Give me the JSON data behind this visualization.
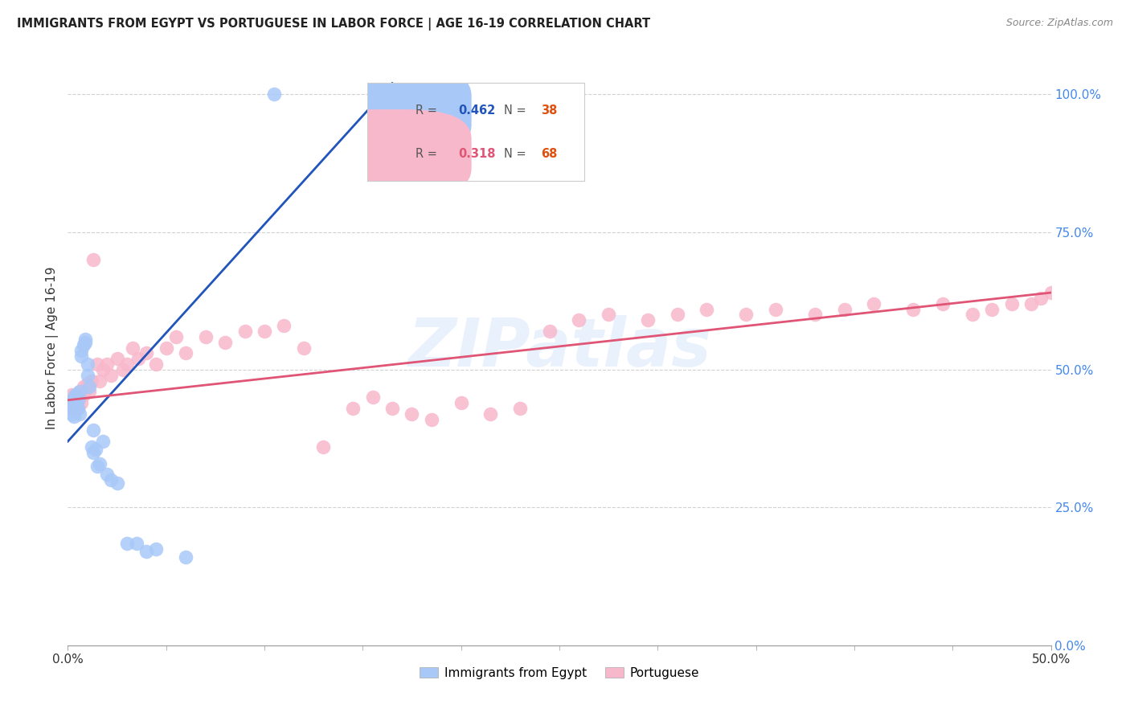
{
  "title": "IMMIGRANTS FROM EGYPT VS PORTUGUESE IN LABOR FORCE | AGE 16-19 CORRELATION CHART",
  "source": "Source: ZipAtlas.com",
  "ylabel": "In Labor Force | Age 16-19",
  "xlim": [
    0.0,
    0.5
  ],
  "ylim": [
    0.0,
    1.08
  ],
  "x_tick_positions": [
    0.0,
    0.5
  ],
  "x_tick_labels": [
    "0.0%",
    "50.0%"
  ],
  "y_ticks_right": [
    0.0,
    0.25,
    0.5,
    0.75,
    1.0
  ],
  "y_tick_labels_right": [
    "0.0%",
    "25.0%",
    "50.0%",
    "75.0%",
    "100.0%"
  ],
  "egypt_R": 0.462,
  "egypt_N": 38,
  "portuguese_R": 0.318,
  "portuguese_N": 68,
  "egypt_color": "#a8c8f8",
  "portuguese_color": "#f8b8cc",
  "egypt_line_color": "#2255bb",
  "portuguese_line_color": "#e05575",
  "egypt_scatter_x": [
    0.001,
    0.002,
    0.002,
    0.003,
    0.003,
    0.003,
    0.004,
    0.004,
    0.004,
    0.005,
    0.005,
    0.005,
    0.006,
    0.006,
    0.007,
    0.007,
    0.008,
    0.009,
    0.009,
    0.01,
    0.01,
    0.011,
    0.012,
    0.013,
    0.013,
    0.014,
    0.015,
    0.016,
    0.018,
    0.02,
    0.022,
    0.025,
    0.03,
    0.035,
    0.04,
    0.045,
    0.06,
    0.105
  ],
  "egypt_scatter_y": [
    0.44,
    0.42,
    0.445,
    0.415,
    0.45,
    0.43,
    0.44,
    0.455,
    0.435,
    0.45,
    0.43,
    0.445,
    0.42,
    0.46,
    0.525,
    0.535,
    0.545,
    0.55,
    0.555,
    0.49,
    0.51,
    0.47,
    0.36,
    0.39,
    0.35,
    0.355,
    0.325,
    0.33,
    0.37,
    0.31,
    0.3,
    0.295,
    0.185,
    0.185,
    0.17,
    0.175,
    0.16,
    1.0
  ],
  "portuguese_scatter_x": [
    0.001,
    0.002,
    0.002,
    0.003,
    0.003,
    0.004,
    0.004,
    0.005,
    0.005,
    0.006,
    0.006,
    0.007,
    0.008,
    0.008,
    0.009,
    0.01,
    0.011,
    0.012,
    0.013,
    0.015,
    0.016,
    0.018,
    0.02,
    0.022,
    0.025,
    0.028,
    0.03,
    0.033,
    0.036,
    0.04,
    0.045,
    0.05,
    0.055,
    0.06,
    0.07,
    0.08,
    0.09,
    0.1,
    0.11,
    0.12,
    0.13,
    0.145,
    0.155,
    0.165,
    0.175,
    0.185,
    0.2,
    0.215,
    0.23,
    0.245,
    0.26,
    0.275,
    0.295,
    0.31,
    0.325,
    0.345,
    0.36,
    0.38,
    0.395,
    0.41,
    0.43,
    0.445,
    0.46,
    0.47,
    0.48,
    0.49,
    0.495,
    0.5
  ],
  "portuguese_scatter_y": [
    0.445,
    0.43,
    0.455,
    0.44,
    0.45,
    0.435,
    0.455,
    0.445,
    0.43,
    0.45,
    0.46,
    0.44,
    0.47,
    0.455,
    0.465,
    0.475,
    0.46,
    0.48,
    0.7,
    0.51,
    0.48,
    0.5,
    0.51,
    0.49,
    0.52,
    0.5,
    0.51,
    0.54,
    0.52,
    0.53,
    0.51,
    0.54,
    0.56,
    0.53,
    0.56,
    0.55,
    0.57,
    0.57,
    0.58,
    0.54,
    0.36,
    0.43,
    0.45,
    0.43,
    0.42,
    0.41,
    0.44,
    0.42,
    0.43,
    0.57,
    0.59,
    0.6,
    0.59,
    0.6,
    0.61,
    0.6,
    0.61,
    0.6,
    0.61,
    0.62,
    0.61,
    0.62,
    0.6,
    0.61,
    0.62,
    0.62,
    0.63,
    0.64
  ],
  "background_color": "#ffffff",
  "grid_color": "#cccccc",
  "watermark": "ZIPatlas",
  "legend_egypt_label": "Immigrants from Egypt",
  "legend_portuguese_label": "Portuguese",
  "egypt_line_x": [
    0.0,
    0.165
  ],
  "egypt_line_y": [
    0.37,
    1.02
  ],
  "portuguese_line_x": [
    0.0,
    0.5
  ],
  "portuguese_line_y": [
    0.445,
    0.64
  ]
}
